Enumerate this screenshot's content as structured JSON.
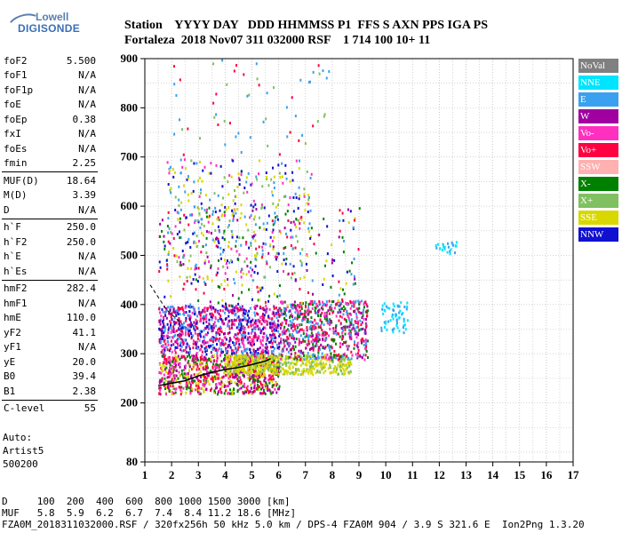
{
  "logo": {
    "line1": "Lowell",
    "line2": "DIGISONDE"
  },
  "header": {
    "row1": "Station    YYYY DAY   DDD HHMMSS P1  FFS S AXN PPS IGA PS",
    "row2": "Fortaleza  2018 Nov07 311 032000 RSF    1 714 100 10+ 11"
  },
  "params": [
    {
      "k": "foF2",
      "v": "5.500"
    },
    {
      "k": "foF1",
      "v": "N/A"
    },
    {
      "k": "foF1p",
      "v": "N/A"
    },
    {
      "k": "foE",
      "v": "N/A"
    },
    {
      "k": "foEp",
      "v": "0.38"
    },
    {
      "k": "fxI",
      "v": "N/A"
    },
    {
      "k": "foEs",
      "v": "N/A"
    },
    {
      "k": "fmin",
      "v": "2.25"
    },
    {
      "k": "MUF(D)",
      "v": "18.64",
      "div": true
    },
    {
      "k": "M(D)",
      "v": "3.39"
    },
    {
      "k": "D",
      "v": "N/A"
    },
    {
      "k": "h`F",
      "v": "250.0",
      "div": true
    },
    {
      "k": "h`F2",
      "v": "250.0"
    },
    {
      "k": "h`E",
      "v": "N/A"
    },
    {
      "k": "h`Es",
      "v": "N/A"
    },
    {
      "k": "hmF2",
      "v": "282.4",
      "div": true
    },
    {
      "k": "hmF1",
      "v": "N/A"
    },
    {
      "k": "hmE",
      "v": "110.0"
    },
    {
      "k": "yF2",
      "v": "41.1"
    },
    {
      "k": "yF1",
      "v": "N/A"
    },
    {
      "k": "yE",
      "v": "20.0"
    },
    {
      "k": "B0",
      "v": "39.4"
    },
    {
      "k": "B1",
      "v": "2.38"
    },
    {
      "k": "C-level",
      "v": "55",
      "div": true
    }
  ],
  "auto": {
    "l1": "Auto:",
    "l2": "Artist5",
    "l3": "500200"
  },
  "legend": [
    {
      "label": "NoVal",
      "color": "#808080"
    },
    {
      "label": "NNE",
      "color": "#00e5ff"
    },
    {
      "label": "E",
      "color": "#3aa0f0"
    },
    {
      "label": "W",
      "color": "#a000a0"
    },
    {
      "label": "Vo-",
      "color": "#ff30c0"
    },
    {
      "label": "Vo+",
      "color": "#ff0040"
    },
    {
      "label": "SSW",
      "color": "#ffb0b0"
    },
    {
      "label": "X-",
      "color": "#008000"
    },
    {
      "label": "X+",
      "color": "#80c060"
    },
    {
      "label": "SSE",
      "color": "#d8d800"
    },
    {
      "label": "NNW",
      "color": "#1010d0"
    }
  ],
  "footer": {
    "row1": "D     100  200  400  600  800 1000 1500 3000 [km]",
    "row2": "MUF   5.8  5.9  6.2  6.7  7.4  8.4 11.2 18.6 [MHz]",
    "row3": "FZA0M_2018311032000.RSF / 320fx256h 50 kHz 5.0 km / DPS-4 FZA0M 904 / 3.9 S 321.6 E  Ion2Png 1.3.20"
  },
  "chart_data": {
    "type": "scatter",
    "xlim": [
      1,
      17
    ],
    "ylim": [
      80,
      900
    ],
    "xticks": [
      1,
      2,
      3,
      4,
      5,
      6,
      7,
      8,
      9,
      10,
      11,
      12,
      13,
      14,
      15,
      16,
      17
    ],
    "yticks": [
      80,
      200,
      300,
      400,
      500,
      600,
      700,
      800,
      900
    ],
    "grid": true,
    "trace": {
      "x": [
        1.5,
        2,
        2.5,
        3,
        3.5,
        4,
        4.5,
        5,
        5.5,
        5.7
      ],
      "y": [
        235,
        240,
        245,
        255,
        262,
        268,
        272,
        278,
        285,
        290
      ]
    },
    "dashed": {
      "x": [
        1.2,
        1.8,
        2.4
      ],
      "y": [
        440,
        390,
        360
      ]
    },
    "clusters": [
      {
        "name": "lowF",
        "colors": [
          "#ff0040",
          "#ff30c0",
          "#a000a0",
          "#008000",
          "#d8d800"
        ],
        "x": [
          1.5,
          6
        ],
        "y": [
          220,
          300
        ],
        "n": 900
      },
      {
        "name": "mid",
        "colors": [
          "#ff30c0",
          "#a000a0",
          "#3aa0f0",
          "#ff0040",
          "#1010d0"
        ],
        "x": [
          1.5,
          6
        ],
        "y": [
          300,
          400
        ],
        "n": 900
      },
      {
        "name": "sse",
        "colors": [
          "#d8d800",
          "#d8d800",
          "#80c060"
        ],
        "x": [
          4,
          8.7
        ],
        "y": [
          260,
          300
        ],
        "n": 500
      },
      {
        "name": "right",
        "colors": [
          "#a000a0",
          "#ff30c0",
          "#ff0040",
          "#3aa0f0",
          "#008000"
        ],
        "x": [
          6,
          9.3
        ],
        "y": [
          290,
          410
        ],
        "n": 700
      },
      {
        "name": "high",
        "colors": [
          "#3aa0f0",
          "#80c060",
          "#1010d0",
          "#d8d800",
          "#ff30c0"
        ],
        "x": [
          1.8,
          7.2
        ],
        "y": [
          450,
          700
        ],
        "n": 350
      },
      {
        "name": "spread",
        "colors": [
          "#a000a0",
          "#ff0040",
          "#1010d0",
          "#3aa0f0",
          "#008000",
          "#d8d800"
        ],
        "x": [
          1.5,
          9
        ],
        "y": [
          400,
          600
        ],
        "n": 300
      },
      {
        "name": "nne",
        "colors": [
          "#00e5ff",
          "#3aa0f0"
        ],
        "x": [
          9.8,
          10.8
        ],
        "y": [
          345,
          410
        ],
        "n": 60
      },
      {
        "name": "nne2",
        "colors": [
          "#00e5ff",
          "#3aa0f0"
        ],
        "x": [
          11.8,
          12.7
        ],
        "y": [
          505,
          530
        ],
        "n": 25
      },
      {
        "name": "topScatter",
        "colors": [
          "#3aa0f0",
          "#80c060",
          "#ff0040"
        ],
        "x": [
          2,
          8
        ],
        "y": [
          700,
          900
        ],
        "n": 60
      }
    ]
  }
}
